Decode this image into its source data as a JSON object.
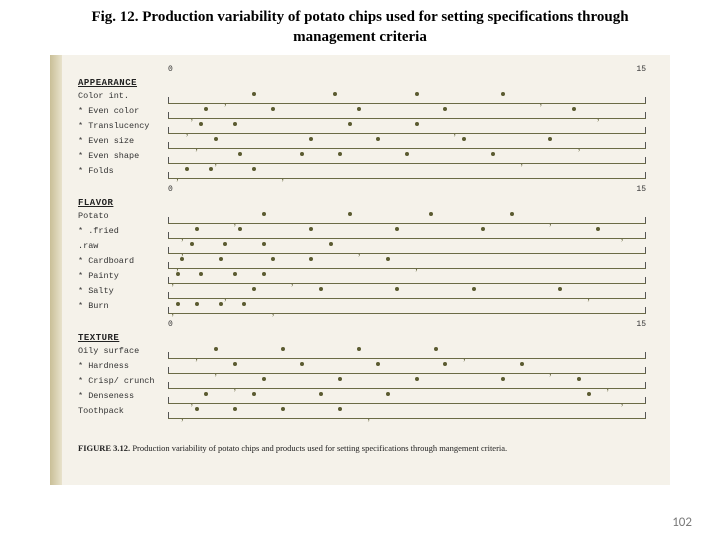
{
  "title": "Fig. 12. Production variability of potato chips used for setting specifications through management criteria",
  "scale": {
    "min": 0,
    "max": 15,
    "min_label": "0",
    "max_label": "15"
  },
  "chart": {
    "sections": [
      {
        "header": "APPEARANCE",
        "rows": [
          {
            "label": "Color int.",
            "dots": [
              18,
              35,
              52,
              70
            ],
            "carets": [
              12,
              78
            ]
          },
          {
            "label": "* Even color",
            "dots": [
              8,
              22,
              40,
              58,
              85
            ],
            "carets": [
              5,
              90
            ]
          },
          {
            "label": "* Translucency",
            "dots": [
              7,
              14,
              38,
              52
            ],
            "carets": [
              4,
              60
            ]
          },
          {
            "label": "* Even size",
            "dots": [
              10,
              30,
              44,
              62,
              80
            ],
            "carets": [
              6,
              86
            ]
          },
          {
            "label": "* Even shape",
            "dots": [
              15,
              28,
              36,
              50,
              68
            ],
            "carets": [
              10,
              74
            ]
          },
          {
            "label": "* Folds",
            "dots": [
              4,
              9,
              18
            ],
            "carets": [
              2,
              24
            ]
          }
        ]
      },
      {
        "header": "FLAVOR",
        "rows": [
          {
            "label": "Potato",
            "dots": [
              20,
              38,
              55,
              72
            ],
            "carets": [
              14,
              80
            ]
          },
          {
            "label": "* .fried",
            "dots": [
              6,
              15,
              30,
              48,
              66,
              90
            ],
            "carets": [
              3,
              95
            ]
          },
          {
            "label": ".raw",
            "dots": [
              5,
              12,
              20,
              34
            ],
            "carets": [
              3,
              40
            ]
          },
          {
            "label": "* Cardboard",
            "dots": [
              3,
              11,
              22,
              30,
              46
            ],
            "carets": [
              2,
              52
            ]
          },
          {
            "label": "* Painty",
            "dots": [
              2,
              7,
              14,
              20
            ],
            "carets": [
              1,
              26
            ]
          },
          {
            "label": "* Salty",
            "dots": [
              18,
              32,
              48,
              64,
              82
            ],
            "carets": [
              12,
              88
            ]
          },
          {
            "label": "* Burn",
            "dots": [
              2,
              6,
              11,
              16
            ],
            "carets": [
              1,
              22
            ]
          }
        ]
      },
      {
        "header": "TEXTURE",
        "rows": [
          {
            "label": "Oily surface",
            "dots": [
              10,
              24,
              40,
              56
            ],
            "carets": [
              6,
              62
            ]
          },
          {
            "label": "* Hardness",
            "dots": [
              14,
              28,
              44,
              58,
              74
            ],
            "carets": [
              10,
              80
            ]
          },
          {
            "label": "* Crisp/\n  crunch",
            "dots": [
              20,
              36,
              52,
              70,
              86
            ],
            "carets": [
              14,
              92
            ]
          },
          {
            "label": "* Denseness",
            "dots": [
              8,
              18,
              32,
              46,
              88
            ],
            "carets": [
              5,
              95
            ]
          },
          {
            "label": "Toothpack",
            "dots": [
              6,
              14,
              24,
              36
            ],
            "carets": [
              3,
              42
            ]
          }
        ]
      }
    ]
  },
  "caption": {
    "label": "FIGURE 3.12.",
    "text": "Production variability of potato chips and products used for setting specifications through mangement criteria."
  },
  "page_number": "102",
  "colors": {
    "page_bg": "#ffffff",
    "scan_bg": "#f5f2ea",
    "spine1": "#c9bf97",
    "spine2": "#e8e2cc",
    "line": "#6b6b46",
    "dot": "#5b5b31",
    "text": "#222222",
    "pagenum": "#7a7a7a"
  }
}
